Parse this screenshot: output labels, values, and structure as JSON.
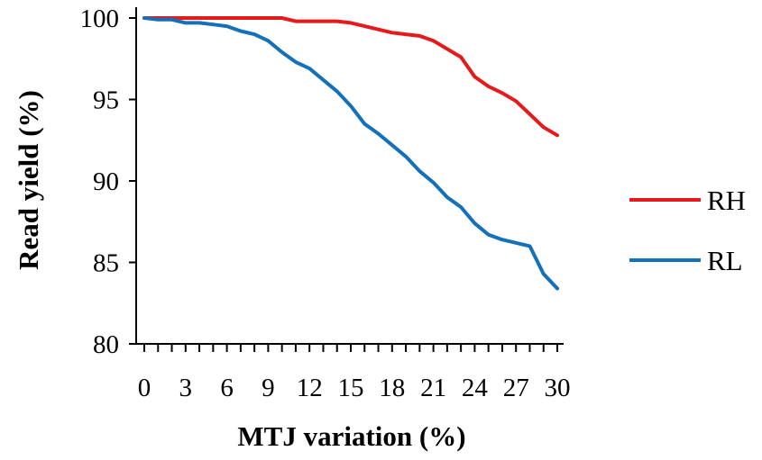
{
  "chart_data": {
    "type": "line",
    "title": "",
    "xlabel": "MTJ variation (%)",
    "ylabel": "Read yield (%)",
    "xlim": [
      0,
      30
    ],
    "ylim": [
      80,
      100
    ],
    "x_ticks": [
      0,
      3,
      6,
      9,
      12,
      15,
      18,
      21,
      24,
      27,
      30
    ],
    "y_ticks": [
      80,
      85,
      90,
      95,
      100
    ],
    "grid": false,
    "legend_position": "right",
    "x": [
      0,
      1,
      2,
      3,
      4,
      5,
      6,
      7,
      8,
      9,
      10,
      11,
      12,
      13,
      14,
      15,
      16,
      17,
      18,
      19,
      20,
      21,
      22,
      23,
      24,
      25,
      26,
      27,
      28,
      29,
      30
    ],
    "series": [
      {
        "name": "RH",
        "color": "#e8191b",
        "values": [
          100,
          100,
          100,
          100,
          100,
          100,
          100,
          100,
          100,
          100,
          100,
          99.8,
          99.8,
          99.8,
          99.8,
          99.7,
          99.5,
          99.3,
          99.1,
          99.0,
          98.9,
          98.6,
          98.1,
          97.6,
          96.4,
          95.8,
          95.4,
          94.9,
          94.1,
          93.3,
          92.8
        ]
      },
      {
        "name": "RL",
        "color": "#1470b8",
        "values": [
          100,
          99.9,
          99.9,
          99.7,
          99.7,
          99.6,
          99.5,
          99.2,
          99.0,
          98.6,
          97.9,
          97.3,
          96.9,
          96.2,
          95.5,
          94.6,
          93.5,
          92.9,
          92.2,
          91.5,
          90.6,
          89.9,
          89.0,
          88.4,
          87.4,
          86.7,
          86.4,
          86.2,
          86.0,
          84.3,
          83.4
        ]
      }
    ]
  }
}
